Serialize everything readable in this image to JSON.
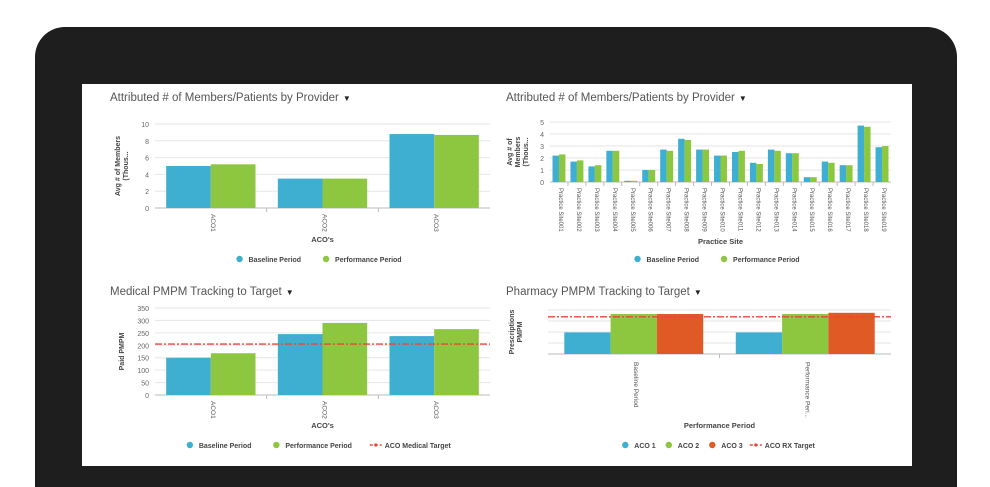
{
  "colors": {
    "baseline": "#3eafd1",
    "performance": "#8dc63f",
    "aco3": "#e05a26",
    "target": "#e8473a",
    "grid": "#e6e6e6"
  },
  "panels": [
    {
      "title": "Attributed # of Members/Patients by Provider",
      "ylabel": "Avg # of Members (Thous...",
      "xlabel": "ACO's"
    },
    {
      "title": "Attributed # of Members/Patients by Provider",
      "ylabel": "Avg # of Members (Thous...",
      "xlabel": "Practice Site"
    },
    {
      "title": "Medical PMPM Tracking to Target",
      "ylabel": "Paid PMPM",
      "xlabel": "ACO's"
    },
    {
      "title": "Pharmacy PMPM Tracking to Target",
      "ylabel": "Prescriptions PMPM",
      "xlabel": "Performance Period"
    }
  ],
  "chart_data": [
    {
      "type": "bar",
      "title": "Attributed # of Members/Patients by Provider",
      "xlabel": "ACO's",
      "ylabel": "Avg # of Members (Thous...",
      "ylim": [
        0,
        10
      ],
      "yticks": [
        0,
        2,
        4,
        6,
        8,
        10
      ],
      "categories": [
        "ACO1",
        "ACO2",
        "ACO3"
      ],
      "series": [
        {
          "name": "Baseline Period",
          "values": [
            5.0,
            3.5,
            8.8
          ]
        },
        {
          "name": "Performance Period",
          "values": [
            5.2,
            3.5,
            8.7
          ]
        }
      ],
      "legend": "bottom",
      "grid": true
    },
    {
      "type": "bar",
      "title": "Attributed # of Members/Patients by Provider",
      "xlabel": "Practice Site",
      "ylabel": "Avg # of Members (Thous...",
      "ylim": [
        0,
        5
      ],
      "yticks": [
        0,
        1,
        2,
        3,
        4,
        5
      ],
      "categories": [
        "Practice Site001",
        "Practice Site002",
        "Practice Site003",
        "Practice Site004",
        "Practice Site005",
        "Practice Site006",
        "Practice Site007",
        "Practice Site008",
        "Practice Site009",
        "Practice Site010",
        "Practice Site011",
        "Practice Site012",
        "Practice Site013",
        "Practice Site014",
        "Practice Site015",
        "Practice Site016",
        "Practice Site017",
        "Practice Site018",
        "Practice Site019"
      ],
      "series": [
        {
          "name": "Baseline Period",
          "values": [
            2.2,
            1.7,
            1.3,
            2.6,
            0.1,
            1.0,
            2.7,
            3.6,
            2.7,
            2.2,
            2.5,
            1.6,
            2.7,
            2.4,
            0.4,
            1.7,
            1.4,
            4.7,
            2.9
          ]
        },
        {
          "name": "Performance Period",
          "values": [
            2.3,
            1.8,
            1.4,
            2.6,
            0.1,
            1.0,
            2.6,
            3.5,
            2.7,
            2.2,
            2.6,
            1.5,
            2.6,
            2.4,
            0.4,
            1.6,
            1.4,
            4.6,
            3.0
          ]
        }
      ],
      "legend": "bottom",
      "grid": true
    },
    {
      "type": "bar",
      "title": "Medical PMPM Tracking to Target",
      "xlabel": "ACO's",
      "ylabel": "Paid PMPM",
      "ylim": [
        0,
        350
      ],
      "yticks": [
        0,
        50,
        100,
        150,
        200,
        250,
        300,
        350
      ],
      "categories": [
        "ACO1",
        "ACO2",
        "ACO3"
      ],
      "series": [
        {
          "name": "Baseline Period",
          "values": [
            150,
            245,
            237
          ]
        },
        {
          "name": "Performance Period",
          "values": [
            168,
            290,
            265
          ]
        }
      ],
      "target": {
        "name": "ACO Medical Target",
        "value": 205
      },
      "legend": "bottom",
      "grid": true
    },
    {
      "type": "bar",
      "title": "Pharmacy PMPM Tracking to Target",
      "xlabel": "Performance Period",
      "ylabel": "Prescriptions PMPM",
      "categories": [
        "Baseline Period",
        "Performance Peri..."
      ],
      "series": [
        {
          "name": "ACO 1",
          "values": [
            0.54,
            0.54
          ]
        },
        {
          "name": "ACO 2",
          "values": [
            1.0,
            1.0
          ]
        },
        {
          "name": "ACO 3",
          "values": [
            1.0,
            1.03
          ]
        }
      ],
      "target": {
        "name": "ACO RX Target",
        "value": 0.93
      },
      "legend": "bottom",
      "grid": true
    }
  ]
}
